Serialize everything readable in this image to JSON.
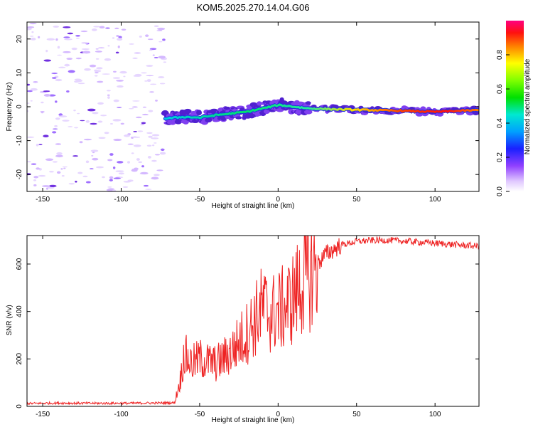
{
  "title": "KOM5.2025.270.14.04.G06",
  "chart_data": [
    {
      "type": "heatmap",
      "xlabel": "Height of straight line (km)",
      "ylabel": "Frequency (Hz)",
      "xlim": [
        -160,
        128
      ],
      "ylim": [
        -25,
        25
      ],
      "xticks": [
        -150,
        -100,
        -50,
        0,
        50,
        100
      ],
      "yticks": [
        -20,
        -10,
        0,
        10,
        20
      ],
      "colorbar": {
        "label": "Normalized spectral amplitude",
        "range": [
          0,
          1
        ],
        "ticks": [
          0.0,
          0.2,
          0.4,
          0.6,
          0.8
        ]
      },
      "ridge": {
        "description_points_x": [
          -72,
          -60,
          -50,
          -40,
          -30,
          -20,
          -10,
          0,
          5,
          10,
          20,
          40,
          60,
          80,
          100,
          110,
          128
        ],
        "description_points_freq": [
          -3.5,
          -3.0,
          -3.2,
          -2.5,
          -2.0,
          -1.5,
          -0.5,
          0.5,
          0.3,
          0.0,
          -0.5,
          -0.8,
          -1.0,
          -1.2,
          -1.5,
          -1.3,
          -1.0
        ],
        "amplitude": [
          0.2,
          0.25,
          0.3,
          0.35,
          0.35,
          0.3,
          0.35,
          0.4,
          0.5,
          0.55,
          0.6,
          0.7,
          0.8,
          0.85,
          0.9,
          0.85,
          0.8
        ]
      },
      "noise_region_x": [
        -160,
        -72
      ]
    },
    {
      "type": "line",
      "xlabel": "Height of straight line (km)",
      "ylabel": "SNR (v/v)",
      "xlim": [
        -160,
        128
      ],
      "ylim": [
        0,
        720
      ],
      "xticks": [
        -150,
        -100,
        -50,
        0,
        50,
        100
      ],
      "yticks": [
        0,
        200,
        400,
        600
      ],
      "series": [
        {
          "name": "SNR",
          "color": "#ee2222",
          "x": [
            -160,
            -140,
            -120,
            -100,
            -80,
            -66,
            -62,
            -60,
            -55,
            -50,
            -45,
            -40,
            -35,
            -30,
            -25,
            -20,
            -15,
            -10,
            -5,
            0,
            5,
            10,
            15,
            20,
            25,
            30,
            40,
            50,
            60,
            70,
            80,
            90,
            100,
            110,
            120,
            128
          ],
          "values": [
            12,
            14,
            13,
            13,
            14,
            15,
            120,
            220,
            180,
            200,
            190,
            180,
            200,
            230,
            270,
            310,
            360,
            420,
            390,
            400,
            420,
            460,
            520,
            560,
            600,
            640,
            680,
            695,
            700,
            700,
            697,
            692,
            688,
            683,
            678,
            675
          ]
        }
      ]
    }
  ]
}
